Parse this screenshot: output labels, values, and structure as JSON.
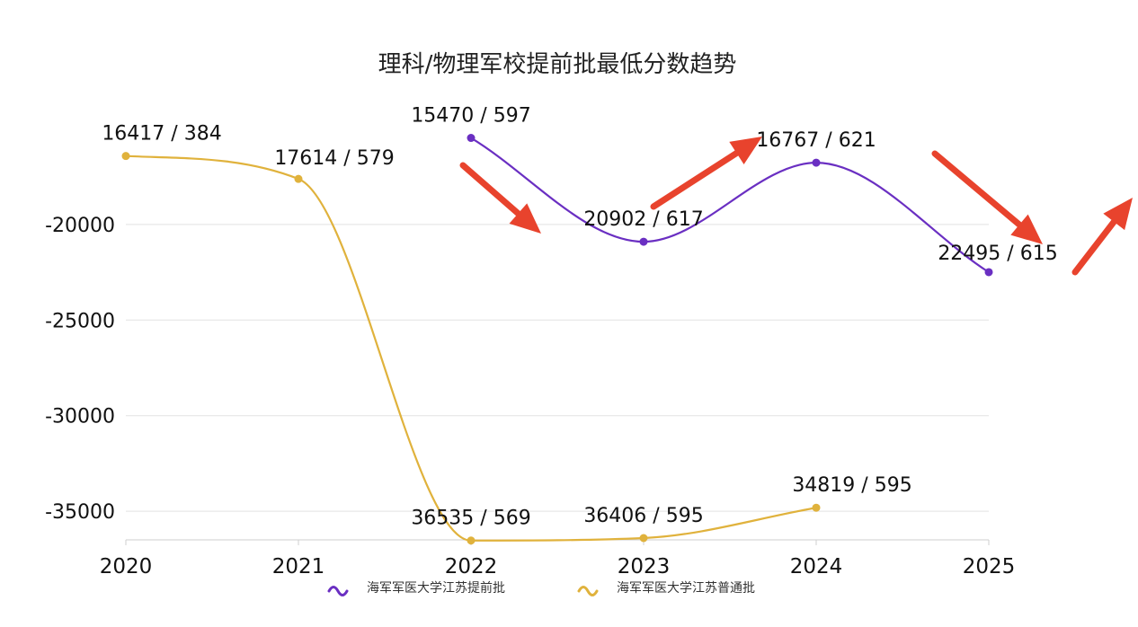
{
  "chart_data": {
    "type": "line",
    "title": "理科/物理军校提前批最低分数趋势",
    "categories": [
      "2020",
      "2021",
      "2022",
      "2023",
      "2024",
      "2025"
    ],
    "ylim": [
      -36500,
      -14600
    ],
    "yticks": [
      -20000,
      -25000,
      -30000,
      -35000
    ],
    "grid": true,
    "legend_position": "bottom",
    "series": [
      {
        "name": "海军军医大学江苏提前批",
        "color": "#6a2fc2",
        "values": [
          null,
          null,
          -15470,
          -20902,
          -16767,
          -22495
        ],
        "labels": [
          "",
          "",
          "15470 / 597",
          "20902 / 617",
          "16767 / 621",
          "22495 / 615"
        ]
      },
      {
        "name": "海军军医大学江苏普通批",
        "color": "#e0b23c",
        "values": [
          -16417,
          -17614,
          -36535,
          -36406,
          -34819,
          null
        ],
        "labels": [
          "16417 / 384",
          "17614 / 579",
          "36535 / 569",
          "36406 / 595",
          "34819 / 595",
          ""
        ]
      }
    ],
    "annotations": {
      "arrow_color": "#e8432d"
    }
  }
}
